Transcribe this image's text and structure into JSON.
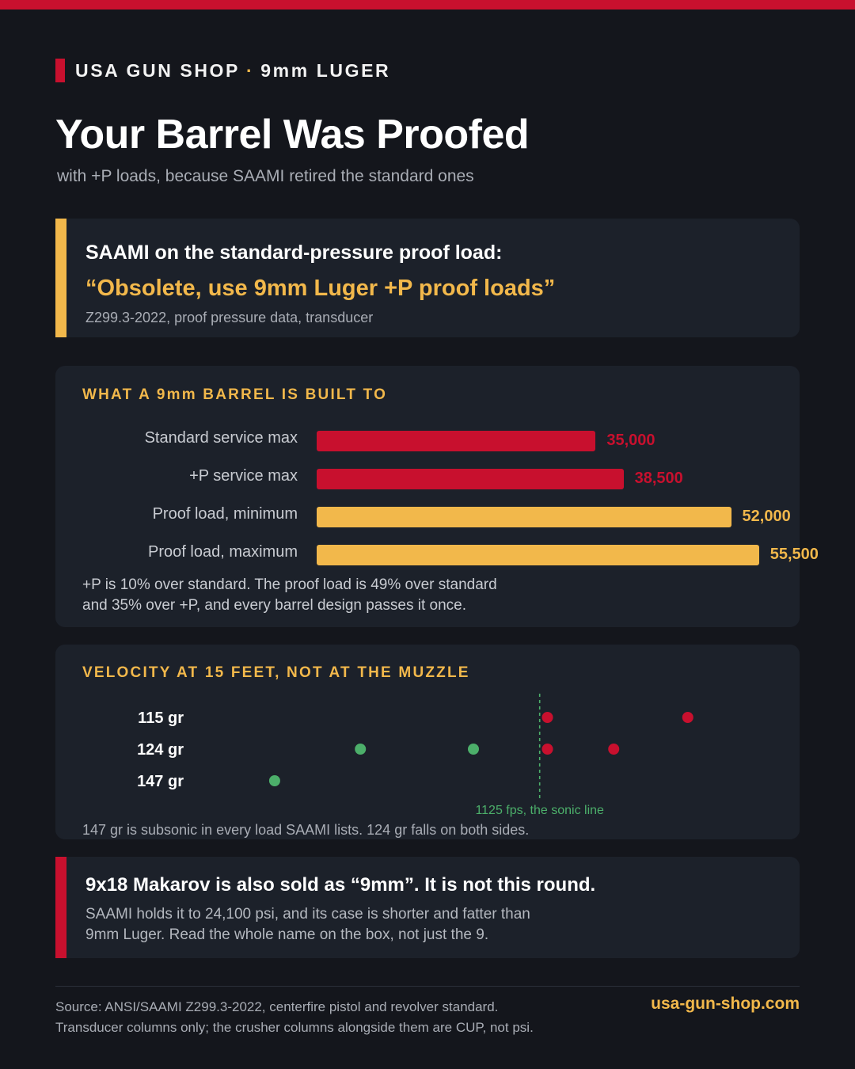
{
  "brand": {
    "name": "USA GUN SHOP",
    "separator": "·",
    "product": "9mm LUGER"
  },
  "title": "Your Barrel Was Proofed",
  "subtitle": "with +P loads, because SAAMI retired the standard ones",
  "quote_card": {
    "heading": "SAAMI on the standard-pressure proof load:",
    "quote": "“Obsolete, use 9mm Luger +P proof loads”",
    "source": "Z299.3-2022, proof pressure data, transducer"
  },
  "colors": {
    "red": "#c8102e",
    "amber": "#f2b84b",
    "green": "#4caf6a",
    "background": "#14161c",
    "card": "#1c212a"
  },
  "chart_data": [
    {
      "type": "bar",
      "title": "WHAT A 9mm BARREL IS BUILT TO",
      "orientation": "horizontal",
      "categories": [
        "Standard service max",
        "+P service max",
        "Proof load, minimum",
        "Proof load, maximum"
      ],
      "values": [
        35000,
        38500,
        52000,
        55500
      ],
      "value_labels": [
        "35,000",
        "38,500",
        "52,000",
        "55,500"
      ],
      "bar_colors": [
        "#c8102e",
        "#c8102e",
        "#f2b84b",
        "#f2b84b"
      ],
      "xlim": [
        0,
        59000
      ],
      "note_line1": "+P is 10% over standard. The proof load is 49% over standard",
      "note_line2": "and 35% over +P, and every barrel design passes it once."
    },
    {
      "type": "scatter",
      "title": "VELOCITY AT 15 FEET, NOT AT THE MUZZLE",
      "categories": [
        "115 gr",
        "124 gr",
        "147 gr"
      ],
      "xlim": [
        780,
        1430
      ],
      "points": [
        {
          "category": "115 gr",
          "x": 1135,
          "color": "#c8102e"
        },
        {
          "category": "115 gr",
          "x": 1315,
          "color": "#c8102e"
        },
        {
          "category": "124 gr",
          "x": 895,
          "color": "#4caf6a"
        },
        {
          "category": "124 gr",
          "x": 1040,
          "color": "#4caf6a"
        },
        {
          "category": "124 gr",
          "x": 1135,
          "color": "#c8102e"
        },
        {
          "category": "124 gr",
          "x": 1220,
          "color": "#c8102e"
        },
        {
          "category": "147 gr",
          "x": 785,
          "color": "#4caf6a"
        }
      ],
      "reference_line": {
        "x": 1125,
        "label": "1125 fps, the sonic line",
        "color": "#4caf6a"
      },
      "note": "147 gr is subsonic in every load SAAMI lists. 124 gr falls on both sides."
    }
  ],
  "warning_card": {
    "heading": "9x18 Makarov is also sold as “9mm”. It is not this round.",
    "body_line1": "SAAMI holds it to 24,100 psi, and its case is shorter and fatter than",
    "body_line2": "9mm Luger. Read the whole name on the box, not just the 9."
  },
  "footer": {
    "source_line1": "Source: ANSI/SAAMI Z299.3-2022, centerfire pistol and revolver standard.",
    "source_line2": "Transducer columns only; the crusher columns alongside them are CUP, not psi.",
    "url": "usa-gun-shop.com"
  }
}
